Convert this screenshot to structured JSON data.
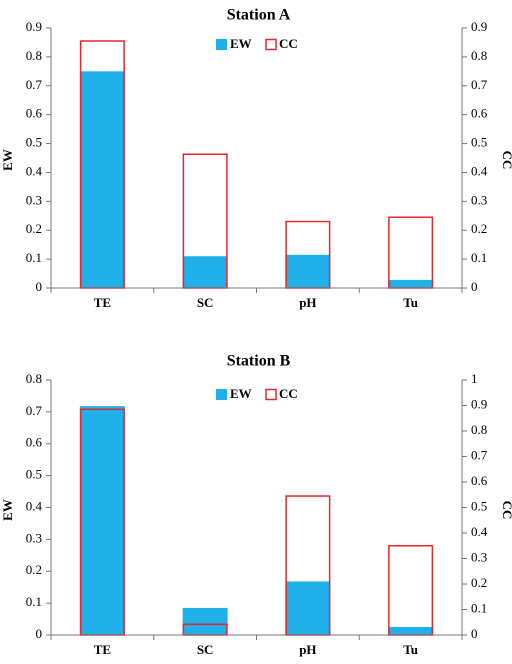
{
  "chart_data": [
    {
      "type": "bar",
      "title": "Station A",
      "categories": [
        "TE",
        "SC",
        "pH",
        "Tu"
      ],
      "ylabel": "EW",
      "y2label": "CC",
      "ylim": [
        0,
        0.9
      ],
      "y2lim": [
        0,
        0.9
      ],
      "yticks": [
        "0",
        "0.1",
        "0.2",
        "0.3",
        "0.4",
        "0.5",
        "0.6",
        "0.7",
        "0.8",
        "0.9"
      ],
      "y2ticks": [
        "0",
        "0.1",
        "0.2",
        "0.3",
        "0.4",
        "0.5",
        "0.6",
        "0.7",
        "0.8",
        "0.9"
      ],
      "legend": [
        "EW",
        "CC"
      ],
      "series": [
        {
          "name": "EW",
          "axis": "left",
          "color": "#1fb0ea",
          "values": [
            0.75,
            0.11,
            0.115,
            0.028
          ]
        },
        {
          "name": "CC",
          "axis": "right",
          "color": "#e8262b",
          "values": [
            0.855,
            0.463,
            0.23,
            0.245
          ]
        }
      ]
    },
    {
      "type": "bar",
      "title": "Station B",
      "categories": [
        "TE",
        "SC",
        "pH",
        "Tu"
      ],
      "ylabel": "EW",
      "y2label": "CC",
      "ylim": [
        0,
        0.8
      ],
      "y2lim": [
        0,
        1
      ],
      "yticks": [
        "0",
        "0.1",
        "0.2",
        "0.3",
        "0.4",
        "0.5",
        "0.6",
        "0.7",
        "0.8"
      ],
      "y2ticks": [
        "0",
        "0.1",
        "0.2",
        "0.3",
        "0.4",
        "0.5",
        "0.6",
        "0.7",
        "0.8",
        "0.9",
        "1"
      ],
      "legend": [
        "EW",
        "CC"
      ],
      "series": [
        {
          "name": "EW",
          "axis": "left",
          "color": "#1fb0ea",
          "values": [
            0.718,
            0.085,
            0.168,
            0.025
          ]
        },
        {
          "name": "CC",
          "axis": "right",
          "color": "#e8262b",
          "values": [
            0.885,
            0.042,
            0.545,
            0.35
          ]
        }
      ]
    }
  ]
}
